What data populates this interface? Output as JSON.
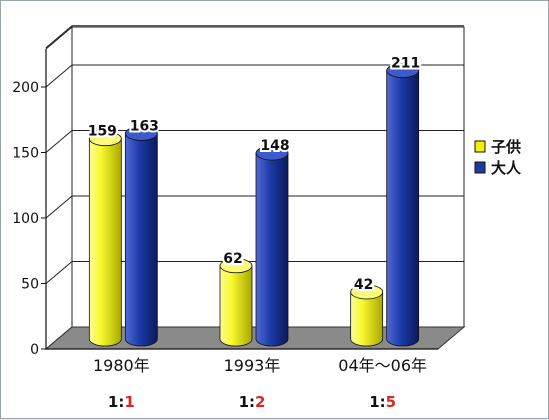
{
  "chart_data": {
    "type": "bar",
    "categories": [
      "1980年",
      "1993年",
      "04年～06年"
    ],
    "series": [
      {
        "name": "子供",
        "values": [
          159,
          62,
          42
        ],
        "color": "#f0f000"
      },
      {
        "name": "大人",
        "values": [
          163,
          148,
          211
        ],
        "color": "#1f3a9e"
      }
    ],
    "yticks": [
      0,
      50,
      100,
      150,
      200
    ],
    "ylim": [
      0,
      230
    ],
    "grid": true,
    "legend_position": "right",
    "ratios": [
      {
        "left": "1:",
        "right": "1"
      },
      {
        "left": "1:",
        "right": "2"
      },
      {
        "left": "1:",
        "right": "5"
      }
    ]
  }
}
